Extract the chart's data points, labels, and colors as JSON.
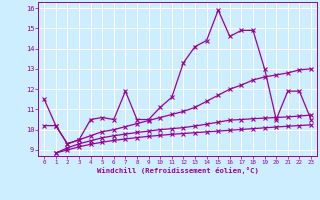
{
  "xlabel": "Windchill (Refroidissement éolien,°C)",
  "bg_color": "#cceeff",
  "line_color": "#990099",
  "grid_color": "#ffffff",
  "xlim": [
    -0.5,
    23.5
  ],
  "ylim": [
    8.7,
    16.3
  ],
  "yticks": [
    9,
    10,
    11,
    12,
    13,
    14,
    15,
    16
  ],
  "xticks": [
    0,
    1,
    2,
    3,
    4,
    5,
    6,
    7,
    8,
    9,
    10,
    11,
    12,
    13,
    14,
    15,
    16,
    17,
    18,
    19,
    20,
    21,
    22,
    23
  ],
  "line1_x": [
    0,
    1,
    2,
    3,
    4,
    5,
    6,
    7,
    8,
    9,
    10,
    11,
    12,
    13,
    14,
    15,
    16,
    17,
    18,
    19,
    20,
    21,
    22,
    23
  ],
  "line1_y": [
    11.5,
    10.2,
    9.3,
    9.5,
    10.5,
    10.6,
    10.5,
    11.9,
    10.5,
    10.5,
    11.1,
    11.6,
    13.3,
    14.1,
    14.4,
    15.9,
    14.6,
    14.9,
    14.9,
    13.0,
    10.5,
    11.9,
    11.9,
    10.5
  ],
  "line2_x": [
    0,
    1,
    2,
    3,
    4,
    5,
    6,
    7,
    8,
    9,
    10,
    11,
    12,
    13,
    14,
    15,
    16,
    17,
    18,
    19,
    20,
    21,
    22,
    23
  ],
  "line2_y": [
    10.2,
    10.2,
    9.3,
    9.5,
    9.7,
    9.9,
    10.0,
    10.15,
    10.3,
    10.45,
    10.6,
    10.75,
    10.9,
    11.1,
    11.4,
    11.7,
    12.0,
    12.2,
    12.45,
    12.6,
    12.7,
    12.8,
    12.95,
    13.0
  ],
  "line3_x": [
    1,
    2,
    3,
    4,
    5,
    6,
    7,
    8,
    9,
    10,
    11,
    12,
    13,
    14,
    15,
    16,
    17,
    18,
    19,
    20,
    21,
    22,
    23
  ],
  "line3_y": [
    8.85,
    9.1,
    9.3,
    9.45,
    9.6,
    9.7,
    9.78,
    9.86,
    9.93,
    10.0,
    10.05,
    10.1,
    10.18,
    10.27,
    10.37,
    10.47,
    10.5,
    10.54,
    10.57,
    10.6,
    10.63,
    10.67,
    10.72
  ],
  "line4_x": [
    1,
    2,
    3,
    4,
    5,
    6,
    7,
    8,
    9,
    10,
    11,
    12,
    13,
    14,
    15,
    16,
    17,
    18,
    19,
    20,
    21,
    22,
    23
  ],
  "line4_y": [
    8.85,
    9.0,
    9.15,
    9.28,
    9.38,
    9.47,
    9.54,
    9.61,
    9.67,
    9.72,
    9.77,
    9.81,
    9.85,
    9.89,
    9.93,
    9.97,
    10.01,
    10.05,
    10.09,
    10.13,
    10.17,
    10.2,
    10.24
  ]
}
